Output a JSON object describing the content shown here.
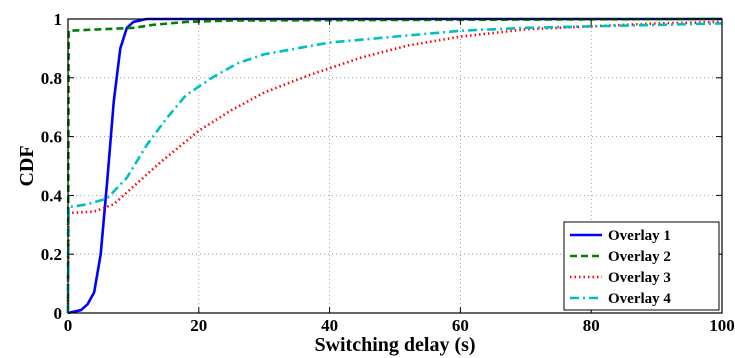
{
  "chart_data": {
    "type": "line",
    "title": "",
    "xlabel": "Switching delay (s)",
    "ylabel": "CDF",
    "xlim": [
      0,
      100
    ],
    "ylim": [
      0,
      1
    ],
    "xticks": [
      0,
      20,
      40,
      60,
      80,
      100
    ],
    "yticks": [
      0,
      0.2,
      0.4,
      0.6,
      0.8,
      1
    ],
    "xtick_labels": [
      "0",
      "20",
      "40",
      "60",
      "80",
      "100"
    ],
    "ytick_labels": [
      "0",
      "0.2",
      "0.4",
      "0.6",
      "0.8",
      "1"
    ],
    "grid": true,
    "legend_position": "bottom-right",
    "series": [
      {
        "name": "Overlay 1",
        "color": "#0000ff",
        "style": "solid",
        "points": [
          [
            0,
            0
          ],
          [
            2,
            0.01
          ],
          [
            3,
            0.03
          ],
          [
            4,
            0.07
          ],
          [
            5,
            0.2
          ],
          [
            6,
            0.45
          ],
          [
            7,
            0.72
          ],
          [
            8,
            0.9
          ],
          [
            9,
            0.97
          ],
          [
            10,
            0.99
          ],
          [
            12,
            1.0
          ],
          [
            100,
            1.0
          ]
        ]
      },
      {
        "name": "Overlay 2",
        "color": "#008000",
        "style": "dashed",
        "points": [
          [
            0,
            0
          ],
          [
            0.1,
            0.96
          ],
          [
            5,
            0.965
          ],
          [
            10,
            0.97
          ],
          [
            13,
            0.98
          ],
          [
            18,
            0.99
          ],
          [
            25,
            0.995
          ],
          [
            100,
            1.0
          ]
        ]
      },
      {
        "name": "Overlay 3",
        "color": "#ff0000",
        "style": "dotted",
        "points": [
          [
            0,
            0
          ],
          [
            0.1,
            0.34
          ],
          [
            4,
            0.345
          ],
          [
            7,
            0.37
          ],
          [
            10,
            0.43
          ],
          [
            14,
            0.51
          ],
          [
            20,
            0.62
          ],
          [
            25,
            0.69
          ],
          [
            30,
            0.75
          ],
          [
            37,
            0.81
          ],
          [
            45,
            0.87
          ],
          [
            52,
            0.91
          ],
          [
            60,
            0.94
          ],
          [
            70,
            0.965
          ],
          [
            80,
            0.975
          ],
          [
            90,
            0.985
          ],
          [
            100,
            0.99
          ]
        ]
      },
      {
        "name": "Overlay 4",
        "color": "#00bfbf",
        "style": "dashdot",
        "points": [
          [
            0,
            0
          ],
          [
            0.1,
            0.36
          ],
          [
            3,
            0.37
          ],
          [
            6,
            0.39
          ],
          [
            9,
            0.46
          ],
          [
            12,
            0.57
          ],
          [
            15,
            0.66
          ],
          [
            18,
            0.74
          ],
          [
            22,
            0.8
          ],
          [
            26,
            0.85
          ],
          [
            30,
            0.88
          ],
          [
            40,
            0.92
          ],
          [
            50,
            0.94
          ],
          [
            60,
            0.96
          ],
          [
            70,
            0.97
          ],
          [
            80,
            0.975
          ],
          [
            90,
            0.98
          ],
          [
            100,
            0.985
          ]
        ]
      }
    ]
  }
}
